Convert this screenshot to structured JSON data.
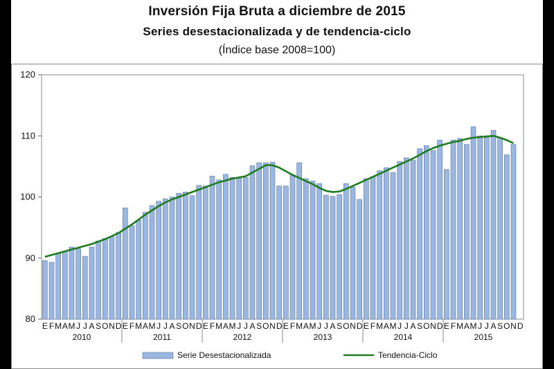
{
  "title": "Inversión Fija Bruta a diciembre de 2015",
  "subtitle": "Series desestacionalizada y de tendencia-ciclo",
  "note": "(Índice base 2008=100)",
  "chart_data": {
    "type": "bar",
    "ylim": [
      80,
      120
    ],
    "yticks": [
      80,
      90,
      100,
      110,
      120
    ],
    "years": [
      "2010",
      "2011",
      "2012",
      "2013",
      "2014",
      "2015"
    ],
    "month_labels": [
      "E",
      "F",
      "M",
      "A",
      "M",
      "J",
      "J",
      "A",
      "S",
      "O",
      "N",
      "D"
    ],
    "legend_placement": "bottom",
    "grid": false,
    "colors": {
      "bar": "#9bb7df",
      "bar_edge": "#5577aa",
      "line": "#1e7b1e"
    },
    "series": [
      {
        "name": "Serie Desestacionalizada",
        "type": "bar",
        "values": [
          89.6,
          89.3,
          90.8,
          91.1,
          91.8,
          91.5,
          90.3,
          91.8,
          92.8,
          93.2,
          93.5,
          94.2,
          98.2,
          95.3,
          96.2,
          97.5,
          98.6,
          99.3,
          99.7,
          100.0,
          100.6,
          100.8,
          100.2,
          101.9,
          101.8,
          103.4,
          102.8,
          103.7,
          103.2,
          103.1,
          103.2,
          105.1,
          105.6,
          105.6,
          105.7,
          101.8,
          101.8,
          103.6,
          105.6,
          103.0,
          102.6,
          102.2,
          100.3,
          100.1,
          100.4,
          102.2,
          101.6,
          99.6,
          103.0,
          103.3,
          104.3,
          104.8,
          104.0,
          105.8,
          106.4,
          106.0,
          107.9,
          108.4,
          107.6,
          109.3,
          104.5,
          109.3,
          109.6,
          108.6,
          111.5,
          110.0,
          109.7,
          110.9,
          109.7,
          106.9,
          108.6
        ]
      },
      {
        "name": "Tendencia-Ciclo",
        "type": "line",
        "values": [
          90.2,
          90.5,
          90.8,
          91.1,
          91.4,
          91.7,
          92.0,
          92.3,
          92.7,
          93.1,
          93.6,
          94.1,
          94.8,
          95.5,
          96.3,
          97.1,
          97.8,
          98.5,
          99.1,
          99.6,
          100.0,
          100.4,
          100.8,
          101.2,
          101.6,
          102.0,
          102.4,
          102.7,
          103.0,
          103.2,
          103.4,
          104.0,
          104.6,
          105.2,
          105.2,
          104.8,
          104.2,
          103.6,
          103.1,
          102.6,
          102.1,
          101.5,
          101.0,
          100.8,
          100.9,
          101.3,
          101.8,
          102.3,
          102.8,
          103.3,
          103.8,
          104.3,
          104.8,
          105.3,
          105.8,
          106.3,
          106.9,
          107.5,
          108.0,
          108.4,
          108.7,
          109.0,
          109.2,
          109.5,
          109.7,
          109.8,
          109.9,
          110.0,
          109.7,
          109.3,
          108.8
        ]
      }
    ]
  }
}
